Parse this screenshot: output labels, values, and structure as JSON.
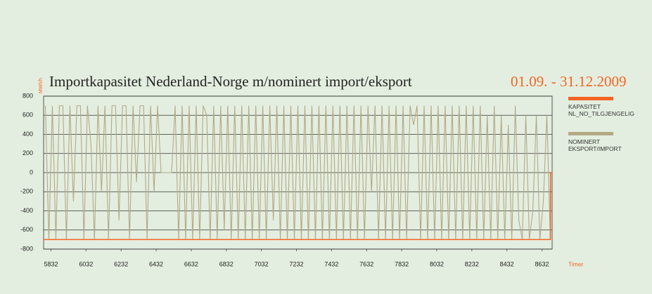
{
  "chart_data": {
    "type": "line",
    "title": "Importkapasitet Nederland-Norge m/nominert import/eksport",
    "subtitle": "01.09. - 31.12.2009",
    "y_label": "MWh/h",
    "x_label": "Timer",
    "xlim": [
      5790,
      8690
    ],
    "xticks": [
      5832,
      6032,
      6232,
      6432,
      6632,
      6832,
      7032,
      7232,
      7432,
      7632,
      7832,
      8032,
      8232,
      8432,
      8632
    ],
    "ylim": [
      -800,
      800
    ],
    "yticks": [
      -800,
      -600,
      -400,
      -200,
      0,
      200,
      400,
      600,
      800
    ],
    "grid": true,
    "legend": "right",
    "series": [
      {
        "name": "KAPASITET NL_NO_TILGJENGELIG",
        "color": "#f26522",
        "x": [
          5790,
          8680,
          8681,
          8690
        ],
        "values": [
          -700,
          -700,
          0,
          0
        ]
      },
      {
        "name": "NOMINERT EKSPORT/IMPORT",
        "color": "#b3a985",
        "x": [
          5800,
          5820,
          5840,
          5860,
          5880,
          5900,
          5920,
          5940,
          5960,
          5980,
          6000,
          6020,
          6040,
          6060,
          6080,
          6100,
          6120,
          6140,
          6160,
          6180,
          6200,
          6220,
          6240,
          6260,
          6280,
          6300,
          6320,
          6340,
          6360,
          6380,
          6400,
          6420,
          6440,
          6460,
          6480,
          6500,
          6520,
          6540,
          6560,
          6580,
          6600,
          6620,
          6640,
          6660,
          6680,
          6700,
          6720,
          6740,
          6760,
          6780,
          6800,
          6820,
          6840,
          6860,
          6880,
          6900,
          6920,
          6940,
          6960,
          6980,
          7000,
          7020,
          7040,
          7060,
          7080,
          7100,
          7120,
          7140,
          7160,
          7180,
          7200,
          7220,
          7240,
          7260,
          7280,
          7300,
          7320,
          7340,
          7360,
          7380,
          7400,
          7420,
          7440,
          7460,
          7480,
          7500,
          7520,
          7540,
          7560,
          7580,
          7600,
          7620,
          7640,
          7660,
          7680,
          7700,
          7720,
          7740,
          7760,
          7780,
          7800,
          7820,
          7840,
          7860,
          7880,
          7900,
          7920,
          7940,
          7960,
          7980,
          8000,
          8020,
          8040,
          8060,
          8080,
          8100,
          8120,
          8140,
          8160,
          8180,
          8200,
          8220,
          8240,
          8260,
          8280,
          8300,
          8320,
          8340,
          8360,
          8380,
          8400,
          8420,
          8440,
          8460,
          8480,
          8500,
          8520,
          8540,
          8560,
          8580,
          8600,
          8620,
          8640,
          8660,
          8680
        ],
        "values": [
          700,
          -700,
          700,
          -700,
          700,
          700,
          -700,
          700,
          -300,
          700,
          700,
          -700,
          700,
          300,
          -700,
          700,
          -200,
          700,
          -700,
          700,
          700,
          -500,
          700,
          700,
          -700,
          700,
          -100,
          700,
          700,
          -700,
          700,
          -200,
          700,
          0,
          0,
          0,
          0,
          700,
          -700,
          700,
          -700,
          700,
          -700,
          700,
          -700,
          700,
          600,
          -700,
          700,
          -700,
          700,
          -600,
          700,
          -700,
          700,
          -700,
          700,
          -700,
          700,
          -700,
          700,
          -700,
          700,
          -700,
          700,
          -500,
          700,
          -700,
          700,
          -700,
          700,
          -700,
          700,
          -700,
          700,
          -700,
          700,
          -700,
          700,
          -700,
          700,
          -700,
          700,
          -700,
          700,
          -700,
          700,
          -700,
          700,
          -700,
          700,
          -700,
          700,
          -200,
          700,
          -700,
          700,
          -700,
          700,
          -700,
          700,
          -700,
          700,
          -700,
          700,
          500,
          700,
          -700,
          700,
          -700,
          700,
          -700,
          700,
          -700,
          700,
          -700,
          700,
          -700,
          700,
          -700,
          700,
          -700,
          700,
          -700,
          700,
          -700,
          600,
          -700,
          700,
          -700,
          600,
          -700,
          500,
          -700,
          700,
          -500,
          -700,
          600,
          -700,
          -400,
          600,
          -700,
          -300,
          600,
          -700
        ]
      }
    ]
  }
}
